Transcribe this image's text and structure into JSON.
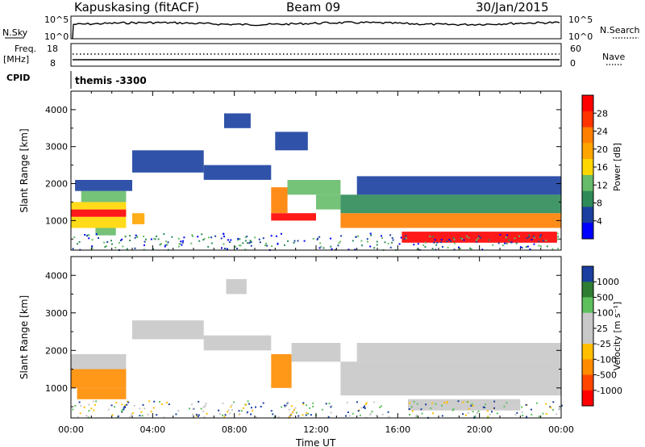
{
  "header": {
    "station": "Kapuskasing (fitACF)",
    "beam": "Beam 09",
    "date": "30/Jan/2015"
  },
  "side_labels": {
    "nsky": "N.Sky",
    "nsearch": "N.Search",
    "freq": "Freq.",
    "freq_unit": "[MHz]",
    "nave": "Nave",
    "cpid": "CPID"
  },
  "cpid_text": "themis -3300",
  "panels": {
    "noise": {
      "left_ticks": [
        "10^5",
        "10^0"
      ],
      "right_ticks": [
        "10^5",
        "10^0"
      ]
    },
    "freq": {
      "left_ticks": [
        "18",
        "8"
      ],
      "right_ticks": [
        "60",
        "0"
      ]
    }
  },
  "colors": {
    "power_scale": [
      "#0000ff",
      "#1a3fa0",
      "#2e8b57",
      "#66bb6a",
      "#ffd700",
      "#ffa500",
      "#ff7f00",
      "#ff3300",
      "#ff0000"
    ],
    "velocity_scale": [
      "#1a3fa0",
      "#2e7d32",
      "#5dc05d",
      "#c8c8c8",
      "#c8c8c8",
      "#ffbf00",
      "#ff8c00",
      "#ff4500",
      "#ff0000"
    ]
  },
  "chart_data": [
    {
      "type": "heatmap",
      "name": "power",
      "ylabel": "Slant Range [km]",
      "yticks": [
        1000,
        2000,
        3000,
        4000
      ],
      "ylim": [
        200,
        4500
      ],
      "x_ticks": [
        "00:00",
        "04:00",
        "08:00",
        "12:00",
        "16:00",
        "20:00",
        "00:00"
      ],
      "xlim": [
        0,
        24
      ],
      "colorbar": {
        "label": "Power [dB]",
        "ticks": [
          "28",
          "24",
          "20",
          "16",
          "12",
          "8",
          "4"
        ],
        "range": [
          0,
          30
        ]
      },
      "bands": [
        {
          "t0": 0.0,
          "t1": 2.7,
          "r0": 1100,
          "r1": 1300,
          "level": 30
        },
        {
          "t0": 0.0,
          "t1": 2.7,
          "r0": 1300,
          "r1": 1500,
          "level": 14
        },
        {
          "t0": 0.0,
          "t1": 2.7,
          "r0": 800,
          "r1": 1100,
          "level": 16
        },
        {
          "t0": 0.5,
          "t1": 2.7,
          "r0": 1500,
          "r1": 1800,
          "level": 10
        },
        {
          "t0": 0.2,
          "t1": 3.0,
          "r0": 1800,
          "r1": 2100,
          "level": 5
        },
        {
          "t0": 1.2,
          "t1": 2.2,
          "r0": 600,
          "r1": 800,
          "level": 12
        },
        {
          "t0": 3.0,
          "t1": 3.6,
          "r0": 900,
          "r1": 1200,
          "level": 18
        },
        {
          "t0": 3.0,
          "t1": 6.5,
          "r0": 2300,
          "r1": 2900,
          "level": 4
        },
        {
          "t0": 6.5,
          "t1": 9.8,
          "r0": 2100,
          "r1": 2500,
          "level": 5
        },
        {
          "t0": 9.8,
          "t1": 12.0,
          "r0": 1000,
          "r1": 1200,
          "level": 30
        },
        {
          "t0": 9.8,
          "t1": 10.6,
          "r0": 1200,
          "r1": 1900,
          "level": 20
        },
        {
          "t0": 10.6,
          "t1": 13.2,
          "r0": 1700,
          "r1": 2100,
          "level": 12
        },
        {
          "t0": 12.0,
          "t1": 13.2,
          "r0": 1300,
          "r1": 1700,
          "level": 10
        },
        {
          "t0": 13.2,
          "t1": 24.0,
          "r0": 800,
          "r1": 1200,
          "level": 22
        },
        {
          "t0": 13.2,
          "t1": 24.0,
          "r0": 1200,
          "r1": 1700,
          "level": 8
        },
        {
          "t0": 16.2,
          "t1": 23.8,
          "r0": 400,
          "r1": 700,
          "level": 30
        },
        {
          "t0": 14.0,
          "t1": 24.0,
          "r0": 1700,
          "r1": 2200,
          "level": 5
        },
        {
          "t0": 7.5,
          "t1": 8.8,
          "r0": 3500,
          "r1": 3900,
          "level": 4
        },
        {
          "t0": 10.0,
          "t1": 11.6,
          "r0": 2900,
          "r1": 3400,
          "level": 6
        }
      ]
    },
    {
      "type": "heatmap",
      "name": "velocity",
      "ylabel": "Slant Range [km]",
      "yticks": [
        1000,
        2000,
        3000,
        4000
      ],
      "ylim": [
        200,
        4500
      ],
      "x_ticks": [
        "00:00",
        "04:00",
        "08:00",
        "12:00",
        "16:00",
        "20:00",
        "00:00"
      ],
      "xlim": [
        0,
        24
      ],
      "xlabel": "Time UT",
      "colorbar": {
        "label": "Velocity [m s⁻¹]",
        "ticks": [
          "1000",
          "500",
          "100",
          "25",
          "-25",
          "-100",
          "-500",
          "-1000"
        ],
        "range": [
          -1000,
          1000
        ]
      },
      "bands": [
        {
          "t0": 0.0,
          "t1": 2.7,
          "r0": 1000,
          "r1": 1500,
          "level": -300
        },
        {
          "t0": 0.0,
          "t1": 2.7,
          "r0": 1500,
          "r1": 1900,
          "level": 0
        },
        {
          "t0": 0.3,
          "t1": 2.7,
          "r0": 700,
          "r1": 1000,
          "level": -200
        },
        {
          "t0": 3.0,
          "t1": 6.5,
          "r0": 2300,
          "r1": 2800,
          "level": 0
        },
        {
          "t0": 6.5,
          "t1": 9.8,
          "r0": 2000,
          "r1": 2400,
          "level": 0
        },
        {
          "t0": 9.8,
          "t1": 10.8,
          "r0": 1000,
          "r1": 1900,
          "level": -300
        },
        {
          "t0": 10.8,
          "t1": 13.2,
          "r0": 1700,
          "r1": 2200,
          "level": 0
        },
        {
          "t0": 13.2,
          "t1": 24.0,
          "r0": 800,
          "r1": 1700,
          "level": 0
        },
        {
          "t0": 16.5,
          "t1": 22.0,
          "r0": 400,
          "r1": 700,
          "level": 0
        },
        {
          "t0": 14.0,
          "t1": 24.0,
          "r0": 1700,
          "r1": 2200,
          "level": 0
        },
        {
          "t0": 7.6,
          "t1": 8.6,
          "r0": 3500,
          "r1": 3900,
          "level": 0
        }
      ]
    }
  ]
}
